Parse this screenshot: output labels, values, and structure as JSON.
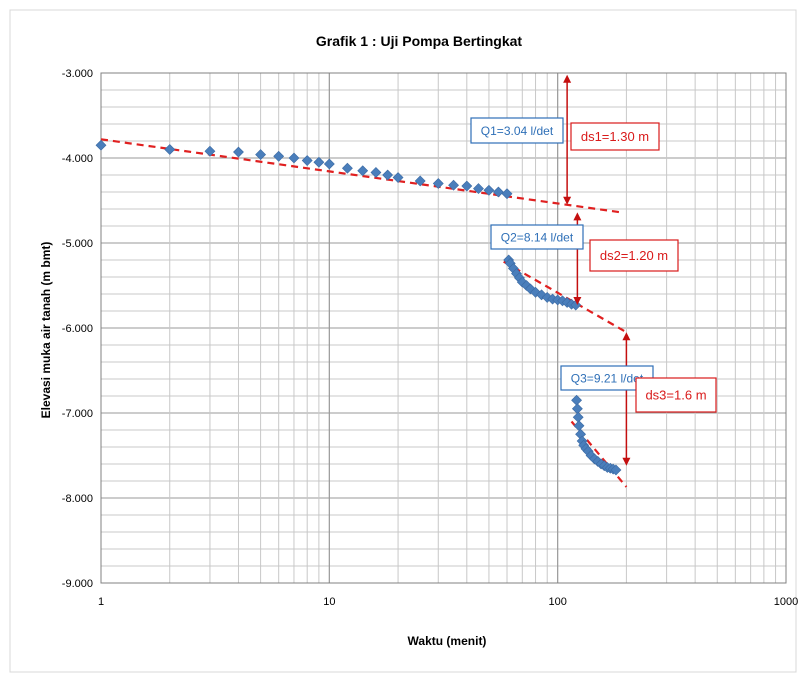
{
  "chart_data": {
    "type": "scatter",
    "title": "Grafik 1 : Uji Pompa Bertingkat",
    "xlabel": "Waktu (menit)",
    "ylabel": "Elevasi muka air tanah (m bmt)",
    "x_scale": "log",
    "xlim": [
      1,
      1000
    ],
    "ylim": [
      -9,
      -3
    ],
    "x_tick_labels": [
      "1",
      "10",
      "100",
      "1000"
    ],
    "y_tick_labels": [
      "-3.000",
      "-4.000",
      "-5.000",
      "-6.000",
      "-7.000",
      "-8.000",
      "-9.000"
    ],
    "grid": true,
    "colors": {
      "marker": "#4a7ebb",
      "trend": "#e02020",
      "label_blue": "#2e6fb7",
      "label_red": "#d91a1a"
    },
    "series": [
      {
        "values": [
          [
            1,
            -3.85
          ],
          [
            2,
            -3.9
          ],
          [
            3,
            -3.92
          ],
          [
            4,
            -3.93
          ],
          [
            5,
            -3.96
          ],
          [
            6,
            -3.98
          ],
          [
            7,
            -4.0
          ],
          [
            8,
            -4.03
          ],
          [
            9,
            -4.05
          ],
          [
            10,
            -4.07
          ],
          [
            12,
            -4.12
          ],
          [
            14,
            -4.15
          ],
          [
            16,
            -4.17
          ],
          [
            18,
            -4.2
          ],
          [
            20,
            -4.23
          ],
          [
            25,
            -4.27
          ],
          [
            30,
            -4.3
          ],
          [
            35,
            -4.32
          ],
          [
            40,
            -4.33
          ],
          [
            45,
            -4.36
          ],
          [
            50,
            -4.38
          ],
          [
            55,
            -4.4
          ],
          [
            60,
            -4.42
          ],
          [
            61,
            -5.2
          ],
          [
            62,
            -5.24
          ],
          [
            64,
            -5.3
          ],
          [
            66,
            -5.36
          ],
          [
            68,
            -5.41
          ],
          [
            70,
            -5.46
          ],
          [
            73,
            -5.5
          ],
          [
            76,
            -5.54
          ],
          [
            80,
            -5.58
          ],
          [
            85,
            -5.61
          ],
          [
            90,
            -5.64
          ],
          [
            95,
            -5.66
          ],
          [
            100,
            -5.67
          ],
          [
            105,
            -5.68
          ],
          [
            110,
            -5.7
          ],
          [
            115,
            -5.72
          ],
          [
            120,
            -5.73
          ],
          [
            121,
            -6.85
          ],
          [
            122,
            -6.95
          ],
          [
            123,
            -7.05
          ],
          [
            124,
            -7.15
          ],
          [
            126,
            -7.25
          ],
          [
            128,
            -7.33
          ],
          [
            130,
            -7.38
          ],
          [
            133,
            -7.42
          ],
          [
            136,
            -7.45
          ],
          [
            140,
            -7.5
          ],
          [
            145,
            -7.54
          ],
          [
            150,
            -7.57
          ],
          [
            155,
            -7.6
          ],
          [
            160,
            -7.62
          ],
          [
            165,
            -7.64
          ],
          [
            170,
            -7.65
          ],
          [
            175,
            -7.66
          ],
          [
            180,
            -7.67
          ]
        ]
      }
    ],
    "trend_lines": [
      {
        "from": [
          1,
          -3.78
        ],
        "to": [
          190,
          -4.64
        ]
      },
      {
        "from": [
          58,
          -5.22
        ],
        "to": [
          200,
          -6.05
        ]
      },
      {
        "from": [
          115,
          -7.1
        ],
        "to": [
          200,
          -7.87
        ]
      }
    ],
    "annotations": {
      "q1": "Q1=3.04 l/det",
      "q2": "Q2=8.14 l/det",
      "q3": "Q3=9.21 l/det",
      "ds1": "ds1=1.30 m",
      "ds2": "ds2=1.20 m",
      "ds3": "ds3=1.6 m"
    },
    "drawdown_arrows": [
      {
        "x": 110,
        "y_top": -3.02,
        "y_bottom": -4.55
      },
      {
        "x": 122,
        "y_top": -4.64,
        "y_bottom": -5.73
      },
      {
        "x": 200,
        "y_top": -6.05,
        "y_bottom": -7.62
      }
    ]
  }
}
